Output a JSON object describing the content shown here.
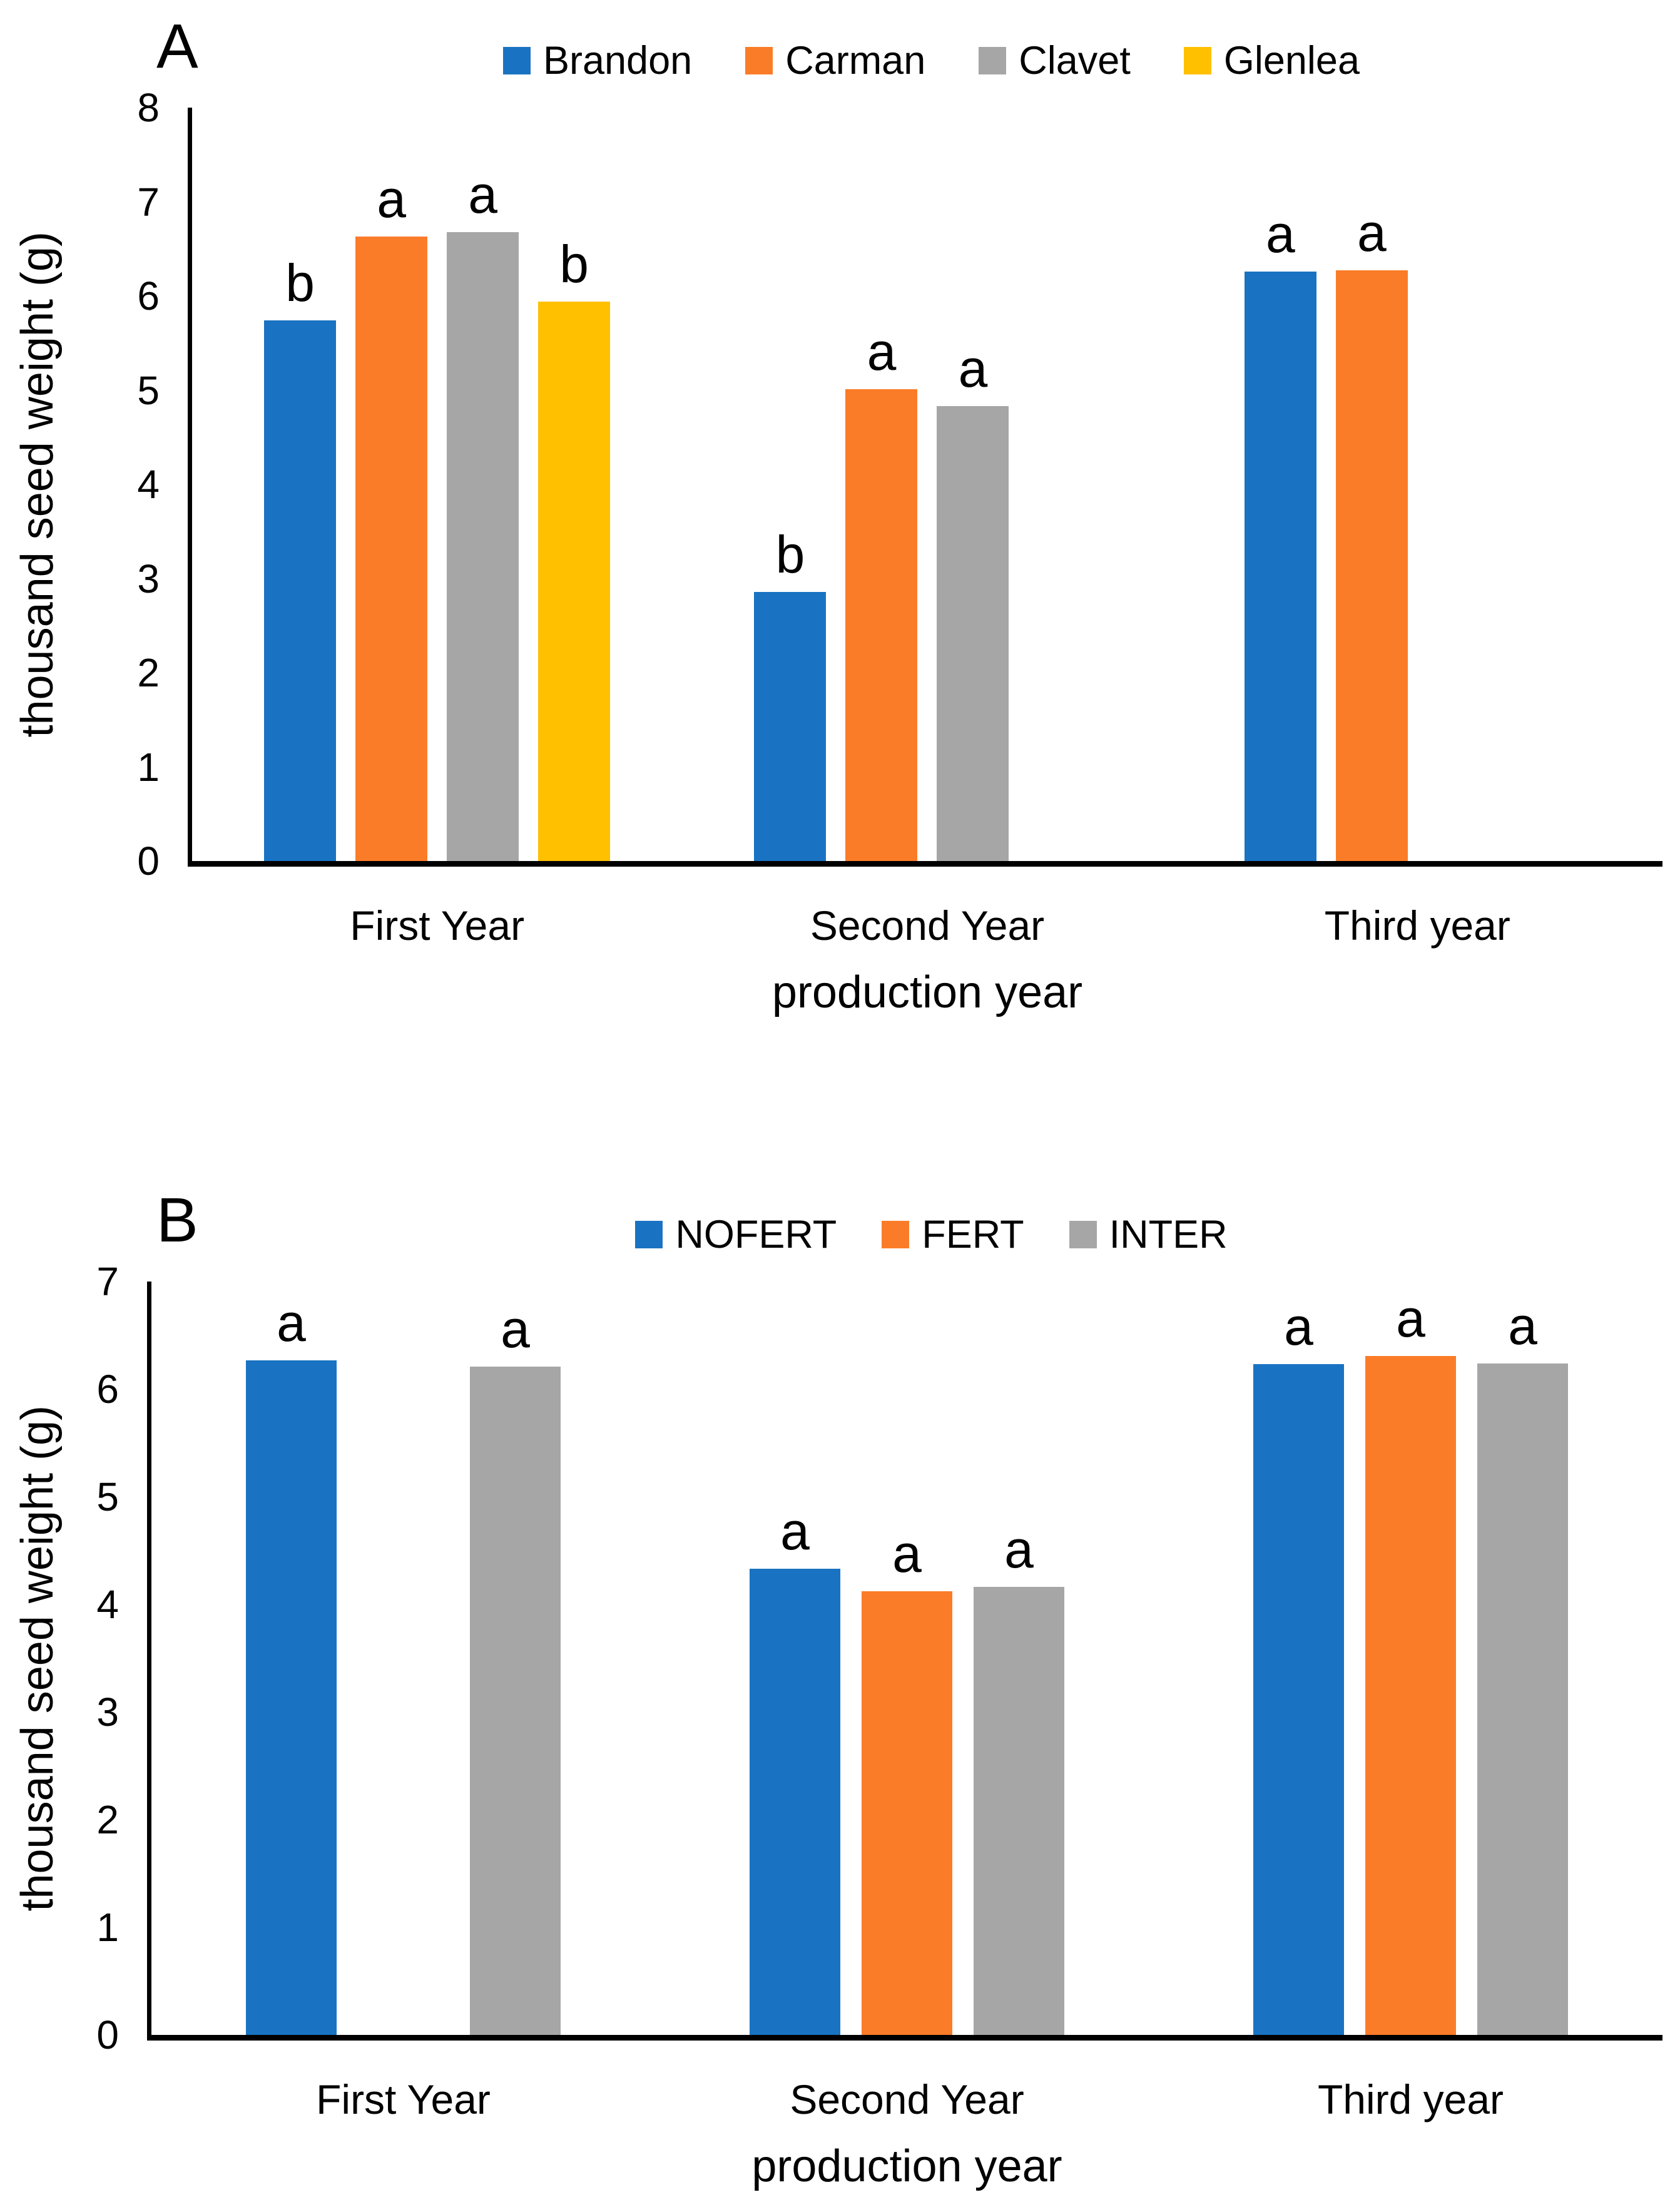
{
  "chart_data": [
    {
      "type": "bar",
      "panel_label": "A",
      "categories": [
        "First Year",
        "Second Year",
        "Third year"
      ],
      "series": [
        {
          "name": "Brandon",
          "color": "#1973C2",
          "values": [
            5.74,
            2.86,
            6.26
          ],
          "bar_labels": [
            "b",
            "b",
            "a"
          ]
        },
        {
          "name": "Carman",
          "color": "#FB7C28",
          "values": [
            6.63,
            5.01,
            6.27
          ],
          "bar_labels": [
            "a",
            "a",
            "a"
          ]
        },
        {
          "name": "Clavet",
          "color": "#A6A6A6",
          "values": [
            6.68,
            4.83,
            null
          ],
          "bar_labels": [
            "a",
            "a",
            null
          ]
        },
        {
          "name": "Glenlea",
          "color": "#FFC000",
          "values": [
            5.94,
            null,
            null
          ],
          "bar_labels": [
            "b",
            null,
            null
          ]
        }
      ],
      "xlabel": "production year",
      "ylabel": "thousand seed weight (g)",
      "ylim": [
        0,
        8
      ],
      "yticks": [
        0,
        1,
        2,
        3,
        4,
        5,
        6,
        7,
        8
      ],
      "legend_position": "top-center",
      "grid": false
    },
    {
      "type": "bar",
      "panel_label": "B",
      "categories": [
        "First Year",
        "Second Year",
        "Third year"
      ],
      "series": [
        {
          "name": "NOFERT",
          "color": "#1973C2",
          "values": [
            6.27,
            4.33,
            6.23
          ],
          "bar_labels": [
            "a",
            "a",
            "a"
          ]
        },
        {
          "name": "FERT",
          "color": "#FB7C28",
          "values": [
            null,
            4.12,
            6.31
          ],
          "bar_labels": [
            null,
            "a",
            "a"
          ]
        },
        {
          "name": "INTER",
          "color": "#A6A6A6",
          "values": [
            6.21,
            4.16,
            6.24
          ],
          "bar_labels": [
            "a",
            "a",
            "a"
          ]
        }
      ],
      "xlabel": "production year",
      "ylabel": "thousand seed weight (g)",
      "ylim": [
        0,
        7
      ],
      "yticks": [
        0,
        1,
        2,
        3,
        4,
        5,
        6,
        7
      ],
      "legend_position": "top-center",
      "grid": false
    }
  ]
}
